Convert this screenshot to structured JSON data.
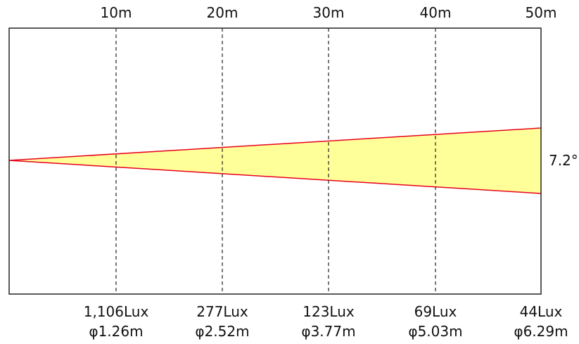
{
  "diagram": {
    "beam_angle_label": "7.2°",
    "colors": {
      "beam_fill": "#ffff99",
      "beam_edge": "#e8001c",
      "frame": "#222222",
      "guide": "#222222"
    },
    "points": [
      {
        "distance": "10m",
        "lux": "1,106Lux",
        "diameter": "φ1.26m"
      },
      {
        "distance": "20m",
        "lux": "277Lux",
        "diameter": "φ2.52m"
      },
      {
        "distance": "30m",
        "lux": "123Lux",
        "diameter": "φ3.77m"
      },
      {
        "distance": "40m",
        "lux": "69Lux",
        "diameter": "φ5.03m"
      },
      {
        "distance": "50m",
        "lux": "44Lux",
        "diameter": "φ6.29m"
      }
    ]
  }
}
